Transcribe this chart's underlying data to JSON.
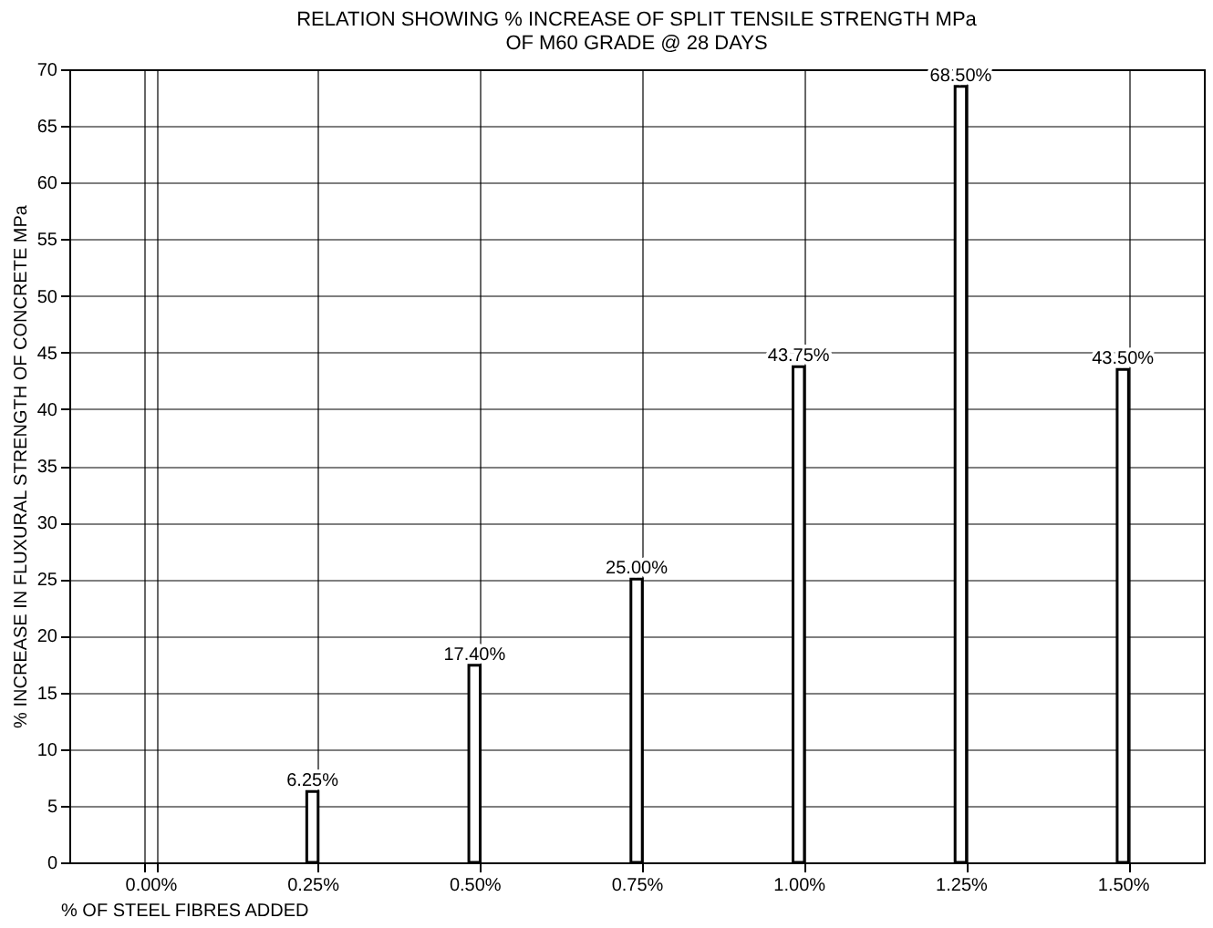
{
  "chart_data": {
    "type": "bar",
    "title": [
      "RELATION SHOWING % INCREASE OF SPLIT TENSILE STRENGTH MPa",
      "OF M60 GRADE @ 28 DAYS"
    ],
    "xlabel": "% OF STEEL FIBRES ADDED",
    "ylabel": "% INCREASE IN FLUXURAL STRENGTH OF CONCRETE MPa",
    "categories": [
      "0.00%",
      "0.25%",
      "0.50%",
      "0.75%",
      "1.00%",
      "1.25%",
      "1.50%"
    ],
    "values": [
      null,
      6.25,
      17.4,
      25,
      43.75,
      68.5,
      43.5
    ],
    "value_labels": [
      null,
      "6.25%",
      "17.40%",
      "25.00%",
      "43.75%",
      "68.50%",
      "43.50%"
    ],
    "color": "#ffffff",
    "ylim": [
      0,
      70
    ],
    "yticks": [
      0,
      5,
      10,
      15,
      20,
      25,
      30,
      35,
      40,
      45,
      50,
      55,
      60,
      65,
      70
    ],
    "grid": true
  }
}
